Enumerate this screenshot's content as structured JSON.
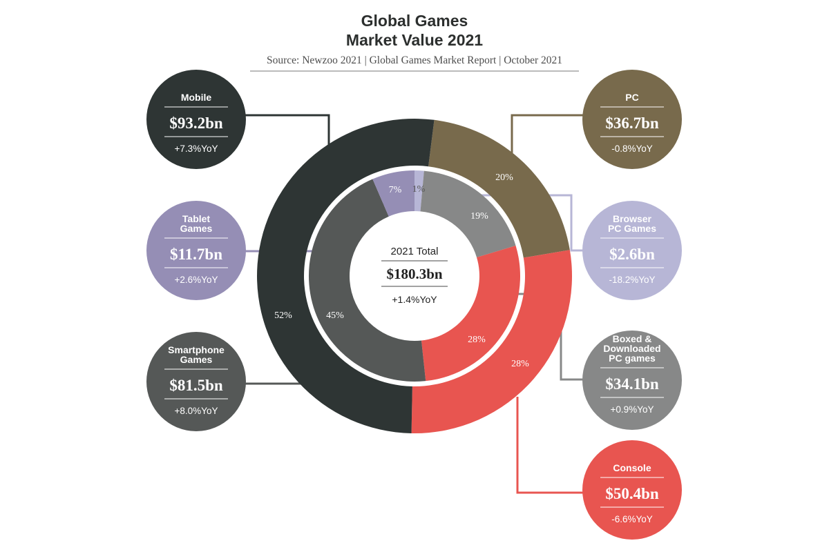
{
  "colors": {
    "mobile": "#2e3534",
    "pc": "#786a4c",
    "console": "#e85550",
    "smartphone": "#555857",
    "tablet": "#958eb5",
    "browser": "#b7b6d6",
    "boxed": "#878888"
  },
  "chart_data": {
    "type": "donut",
    "title": "Global Games Market Value 2021",
    "title_lines": [
      "Global Games",
      "Market Value 2021"
    ],
    "source": "Source: Newzoo 2021 | Global Games Market Report | October 2021",
    "total": {
      "label": "2021 Total",
      "value": "$180.3bn",
      "yoy": "+1.4%YoY"
    },
    "outer_ring": [
      {
        "id": "mobile",
        "name": "Mobile",
        "value": 93.2,
        "value_label": "$93.2bn",
        "share": 52,
        "share_label": "52%",
        "yoy": "+7.3%YoY",
        "color_key": "mobile"
      },
      {
        "id": "console",
        "name": "Console",
        "value": 50.4,
        "value_label": "$50.4bn",
        "share": 28,
        "share_label": "28%",
        "yoy": "-6.6%YoY",
        "color_key": "console"
      },
      {
        "id": "pc",
        "name": "PC",
        "value": 36.7,
        "value_label": "$36.7bn",
        "share": 20,
        "share_label": "20%",
        "yoy": "-0.8%YoY",
        "color_key": "pc"
      }
    ],
    "inner_ring": [
      {
        "id": "smartphone",
        "name": "Smartphone Games",
        "name_lines": [
          "Smartphone",
          "Games"
        ],
        "value": 81.5,
        "value_label": "$81.5bn",
        "share": 45,
        "share_label": "45%",
        "yoy": "+8.0%YoY",
        "color_key": "smartphone"
      },
      {
        "id": "tablet",
        "name": "Tablet Games",
        "name_lines": [
          "Tablet",
          "Games"
        ],
        "value": 11.7,
        "value_label": "$11.7bn",
        "share": 7,
        "share_label": "7%",
        "yoy": "+2.6%YoY",
        "color_key": "tablet"
      },
      {
        "id": "browser",
        "name": "Browser PC Games",
        "name_lines": [
          "Browser",
          "PC Games"
        ],
        "value": 2.6,
        "value_label": "$2.6bn",
        "share": 1,
        "share_label": "1%",
        "yoy": "-18.2%YoY",
        "color_key": "browser"
      },
      {
        "id": "boxed",
        "name": "Boxed & Downloaded PC games",
        "name_lines": [
          "Boxed &",
          "Downloaded",
          "PC games"
        ],
        "value": 34.1,
        "value_label": "$34.1bn",
        "share": 19,
        "share_label": "19%",
        "yoy": "+0.9%YoY",
        "color_key": "boxed"
      },
      {
        "id": "console_inner",
        "name": "Console",
        "value": 50.4,
        "value_label": "$50.4bn",
        "share": 28,
        "share_label": "28%",
        "color_key": "console"
      }
    ],
    "bubbles": [
      {
        "segment": "mobile",
        "name_lines": [
          "Mobile"
        ],
        "value_label": "$93.2bn",
        "yoy": "+7.3%YoY",
        "color_key": "mobile"
      },
      {
        "segment": "tablet",
        "name_lines": [
          "Tablet",
          "Games"
        ],
        "value_label": "$11.7bn",
        "yoy": "+2.6%YoY",
        "color_key": "tablet"
      },
      {
        "segment": "smartphone",
        "name_lines": [
          "Smartphone",
          "Games"
        ],
        "value_label": "$81.5bn",
        "yoy": "+8.0%YoY",
        "color_key": "smartphone"
      },
      {
        "segment": "pc",
        "name_lines": [
          "PC"
        ],
        "value_label": "$36.7bn",
        "yoy": "-0.8%YoY",
        "color_key": "pc"
      },
      {
        "segment": "browser",
        "name_lines": [
          "Browser",
          "PC Games"
        ],
        "value_label": "$2.6bn",
        "yoy": "-18.2%YoY",
        "color_key": "browser"
      },
      {
        "segment": "boxed",
        "name_lines": [
          "Boxed &",
          "Downloaded",
          "PC games"
        ],
        "value_label": "$34.1bn",
        "yoy": "+0.9%YoY",
        "color_key": "boxed"
      },
      {
        "segment": "console",
        "name_lines": [
          "Console"
        ],
        "value_label": "$50.4bn",
        "yoy": "-6.6%YoY",
        "color_key": "console"
      }
    ]
  }
}
